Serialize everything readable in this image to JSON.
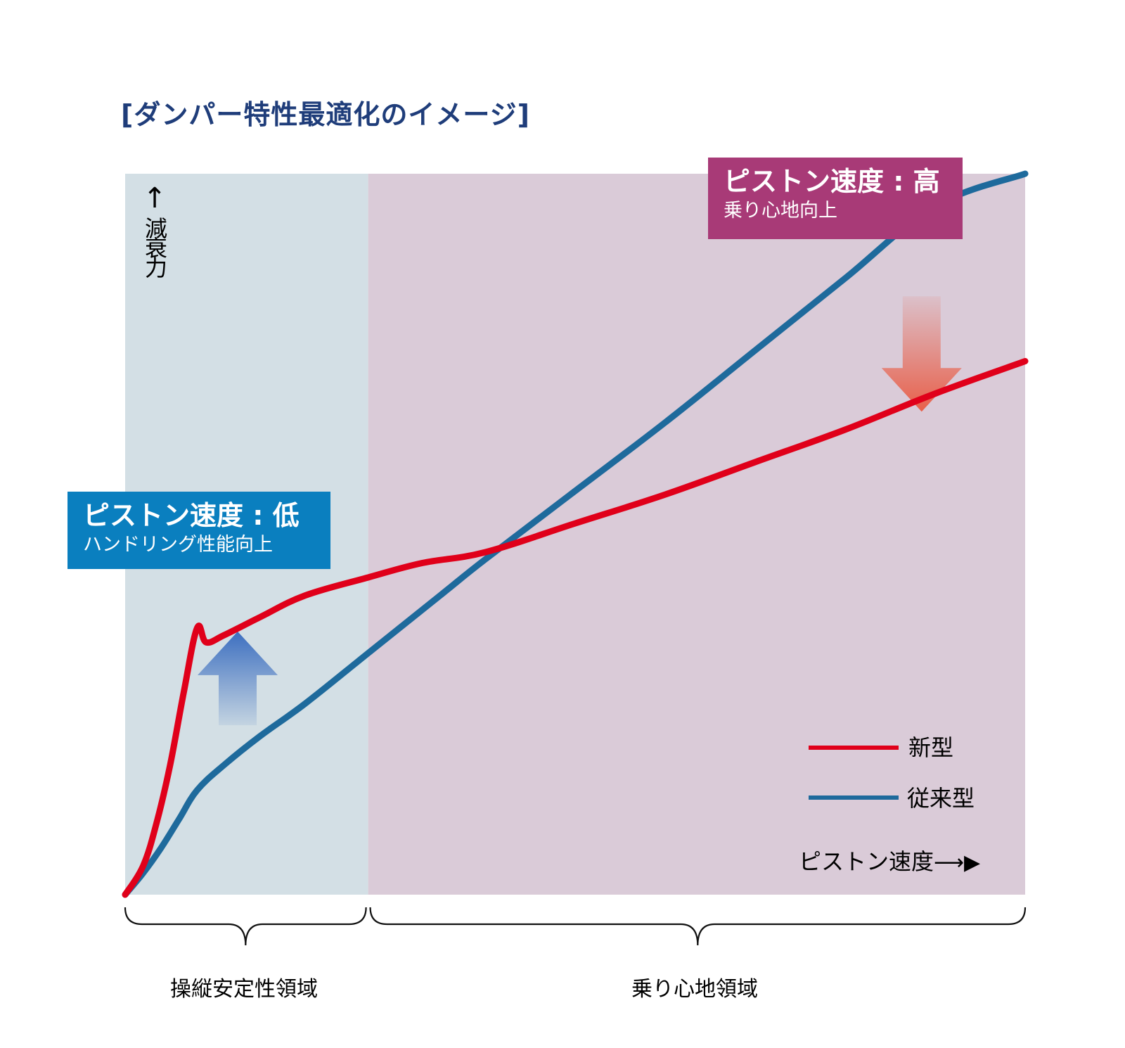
{
  "title": "[ダンパー特性最適化のイメージ]",
  "callouts": {
    "high": {
      "main": "ピストン速度 : 高",
      "sub": "乗り心地向上",
      "color": "#a83a77"
    },
    "low": {
      "main": "ピストン速度 : 低",
      "sub": "ハンドリング性能向上",
      "color": "#0a7fbf"
    }
  },
  "colors": {
    "handling_region_bg": "#d3dfe5",
    "comfort_region_bg": "#dacbd8",
    "new_series": "#e0001a",
    "old_series": "#1e6a9c",
    "title": "#1f3d7a"
  },
  "chart_data": {
    "type": "line",
    "title": "[ダンパー特性最適化のイメージ]",
    "xlabel": "ピストン速度",
    "ylabel": "減衰力",
    "xlim": [
      0,
      100
    ],
    "ylim": [
      0,
      100
    ],
    "grid": false,
    "legend_position": "bottom-right",
    "region_boundary": 27,
    "regions": [
      {
        "label": "操縦安定性領域",
        "from": 0,
        "to": 27
      },
      {
        "label": "乗り心地領域",
        "from": 27,
        "to": 100
      }
    ],
    "series": [
      {
        "name": "新型",
        "x": [
          0,
          2,
          3.5,
          5,
          6.5,
          8,
          9,
          11,
          15,
          20,
          27,
          33,
          40,
          50,
          60,
          70,
          80,
          90,
          100
        ],
        "y": [
          0,
          4,
          10,
          18,
          28,
          37,
          35,
          36,
          38.5,
          41.5,
          44,
          46,
          47.5,
          51.5,
          55.5,
          60,
          64.5,
          69.5,
          74
        ]
      },
      {
        "name": "従来型",
        "x": [
          0,
          2,
          4,
          6,
          8,
          11,
          15,
          20,
          27,
          35,
          40,
          50,
          60,
          70,
          80,
          90,
          100
        ],
        "y": [
          0,
          3,
          6.5,
          10.5,
          14.5,
          18,
          22,
          26.5,
          33.5,
          41.5,
          46.5,
          56,
          65.5,
          75.5,
          85.5,
          95.5,
          100
        ]
      }
    ],
    "annotations": [
      {
        "type": "arrow",
        "direction": "up",
        "at_x": 12.5,
        "from_y": 23.5,
        "to_y": 36.5,
        "color": "#3d6fc0"
      },
      {
        "type": "arrow",
        "direction": "down",
        "at_x": 88.5,
        "from_y": 83,
        "to_y": 67,
        "color": "#e8604a"
      }
    ]
  },
  "legend": [
    {
      "label": "新型",
      "color": "#e0001a"
    },
    {
      "label": "従来型",
      "color": "#1e6a9c"
    }
  ],
  "axes": {
    "y_label": "減衰力",
    "x_label": "ピストン速度"
  }
}
